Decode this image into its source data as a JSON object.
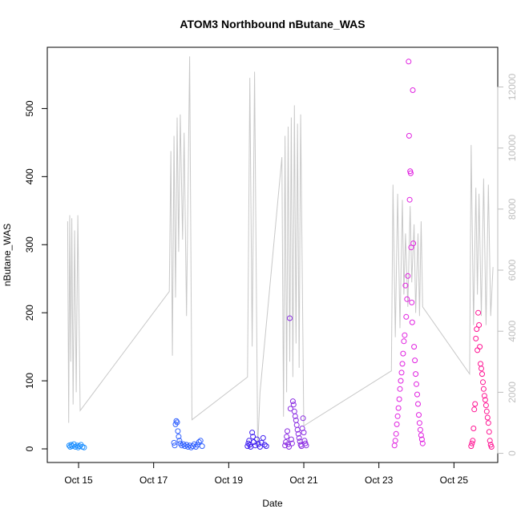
{
  "chart_data": {
    "type": "scatter",
    "title": "ATOM3 Northbound nButane_WAS",
    "xlabel": "Date",
    "ylabel": "nButane_WAS",
    "x_ticks": [
      "Oct 15",
      "Oct 17",
      "Oct 19",
      "Oct 21",
      "Oct 23",
      "Oct 25"
    ],
    "y_ticks": [
      "0",
      "100",
      "200",
      "300",
      "400",
      "500"
    ],
    "y2_ticks": [
      "0",
      "2000",
      "4000",
      "6000",
      "8000",
      "10000",
      "12000"
    ],
    "xlim": [
      "2017-10-14T04:00",
      "2017-10-26T04:00"
    ],
    "ylim": [
      -20,
      590
    ],
    "y2lim": [
      -300,
      13300
    ],
    "grid": false,
    "legend": "none",
    "colors": {
      "scatter_gradient": [
        "#1e90ff",
        "#4040ff",
        "#a020f0",
        "#ff00ff",
        "#ff1493"
      ],
      "altitude_line": "#c8c8c8",
      "axis": "#000000",
      "secondary_axis": "#bebebe"
    },
    "series": [
      {
        "color_group": "Oct 14 - Oct 15",
        "color": "#1e90ff",
        "points": [
          [
            "2017-10-14T18:00",
            5
          ],
          [
            "2017-10-14T18:40",
            3
          ],
          [
            "2017-10-14T19:20",
            6
          ],
          [
            "2017-10-14T20:00",
            4
          ],
          [
            "2017-10-14T21:00",
            7
          ],
          [
            "2017-10-14T22:00",
            3
          ],
          [
            "2017-10-14T23:00",
            5
          ],
          [
            "2017-10-14T23:45",
            2
          ],
          [
            "2017-10-15T00:30",
            4
          ],
          [
            "2017-10-15T01:30",
            6
          ],
          [
            "2017-10-15T02:30",
            3
          ],
          [
            "2017-10-15T03:30",
            2
          ]
        ]
      },
      {
        "color_group": "Oct 17 - Oct 18",
        "color": "#3060ff",
        "points": [
          [
            "2017-10-17T13:00",
            9
          ],
          [
            "2017-10-17T13:30",
            5
          ],
          [
            "2017-10-17T14:00",
            36
          ],
          [
            "2017-10-17T14:30",
            41
          ],
          [
            "2017-10-17T15:00",
            39
          ],
          [
            "2017-10-17T15:30",
            26
          ],
          [
            "2017-10-17T16:00",
            18
          ],
          [
            "2017-10-17T16:30",
            12
          ],
          [
            "2017-10-17T17:00",
            8
          ],
          [
            "2017-10-17T18:00",
            5
          ],
          [
            "2017-10-17T19:00",
            7
          ],
          [
            "2017-10-17T20:00",
            4
          ],
          [
            "2017-10-17T21:00",
            6
          ],
          [
            "2017-10-17T22:00",
            3
          ],
          [
            "2017-10-17T23:00",
            5
          ],
          [
            "2017-10-18T00:00",
            2
          ],
          [
            "2017-10-18T01:00",
            4
          ],
          [
            "2017-10-18T02:00",
            7
          ],
          [
            "2017-10-18T03:00",
            3
          ],
          [
            "2017-10-18T04:00",
            6
          ],
          [
            "2017-10-18T05:00",
            10
          ],
          [
            "2017-10-18T06:00",
            12
          ],
          [
            "2017-10-18T07:00",
            4
          ]
        ]
      },
      {
        "color_group": "Oct 19 - Oct 20",
        "color": "#4020f0",
        "points": [
          [
            "2017-10-19T12:00",
            4
          ],
          [
            "2017-10-19T12:30",
            8
          ],
          [
            "2017-10-19T13:00",
            12
          ],
          [
            "2017-10-19T13:30",
            6
          ],
          [
            "2017-10-19T14:00",
            3
          ],
          [
            "2017-10-19T15:00",
            24
          ],
          [
            "2017-10-19T15:30",
            18
          ],
          [
            "2017-10-19T16:00",
            10
          ],
          [
            "2017-10-19T17:00",
            5
          ],
          [
            "2017-10-19T18:00",
            14
          ],
          [
            "2017-10-19T19:00",
            7
          ],
          [
            "2017-10-19T20:00",
            3
          ],
          [
            "2017-10-19T21:00",
            9
          ],
          [
            "2017-10-19T22:00",
            16
          ],
          [
            "2017-10-19T23:00",
            6
          ],
          [
            "2017-10-20T00:00",
            4
          ]
        ]
      },
      {
        "color_group": "Oct 20 - Oct 21",
        "color": "#8a2be2",
        "points": [
          [
            "2017-10-20T12:00",
            5
          ],
          [
            "2017-10-20T12:30",
            10
          ],
          [
            "2017-10-20T13:00",
            18
          ],
          [
            "2017-10-20T13:30",
            26
          ],
          [
            "2017-10-20T14:00",
            7
          ],
          [
            "2017-10-20T14:30",
            3
          ],
          [
            "2017-10-20T15:00",
            192
          ],
          [
            "2017-10-20T15:30",
            59
          ],
          [
            "2017-10-20T16:00",
            14
          ],
          [
            "2017-10-20T16:30",
            8
          ],
          [
            "2017-10-20T17:00",
            70
          ],
          [
            "2017-10-20T17:30",
            65
          ],
          [
            "2017-10-20T18:00",
            55
          ],
          [
            "2017-10-20T18:30",
            48
          ],
          [
            "2017-10-20T19:00",
            42
          ],
          [
            "2017-10-20T19:30",
            35
          ],
          [
            "2017-10-20T20:00",
            28
          ],
          [
            "2017-10-20T20:30",
            22
          ],
          [
            "2017-10-20T21:00",
            16
          ],
          [
            "2017-10-20T21:30",
            11
          ],
          [
            "2017-10-20T22:00",
            6
          ],
          [
            "2017-10-20T22:30",
            4
          ],
          [
            "2017-10-20T23:00",
            30
          ],
          [
            "2017-10-20T23:30",
            45
          ],
          [
            "2017-10-21T00:00",
            24
          ],
          [
            "2017-10-21T00:30",
            12
          ],
          [
            "2017-10-21T01:00",
            8
          ],
          [
            "2017-10-21T01:30",
            5
          ]
        ]
      },
      {
        "color_group": "Oct 23 - Oct 24",
        "color": "#e020e0",
        "points": [
          [
            "2017-10-23T10:00",
            5
          ],
          [
            "2017-10-23T10:30",
            12
          ],
          [
            "2017-10-23T11:00",
            22
          ],
          [
            "2017-10-23T11:30",
            36
          ],
          [
            "2017-10-23T12:00",
            48
          ],
          [
            "2017-10-23T12:30",
            60
          ],
          [
            "2017-10-23T13:00",
            73
          ],
          [
            "2017-10-23T13:30",
            88
          ],
          [
            "2017-10-23T14:00",
            100
          ],
          [
            "2017-10-23T14:30",
            112
          ],
          [
            "2017-10-23T15:00",
            125
          ],
          [
            "2017-10-23T15:30",
            140
          ],
          [
            "2017-10-23T16:00",
            158
          ],
          [
            "2017-10-23T16:30",
            167
          ],
          [
            "2017-10-23T17:00",
            240
          ],
          [
            "2017-10-23T17:30",
            194
          ],
          [
            "2017-10-23T18:00",
            220
          ],
          [
            "2017-10-23T18:30",
            254
          ],
          [
            "2017-10-23T19:00",
            569
          ],
          [
            "2017-10-23T19:20",
            460
          ],
          [
            "2017-10-23T19:40",
            366
          ],
          [
            "2017-10-23T20:00",
            408
          ],
          [
            "2017-10-23T20:20",
            405
          ],
          [
            "2017-10-23T20:40",
            296
          ],
          [
            "2017-10-23T21:00",
            215
          ],
          [
            "2017-10-23T21:20",
            186
          ],
          [
            "2017-10-23T21:40",
            527
          ],
          [
            "2017-10-23T22:00",
            302
          ],
          [
            "2017-10-23T22:30",
            150
          ],
          [
            "2017-10-23T23:00",
            130
          ],
          [
            "2017-10-23T23:30",
            110
          ],
          [
            "2017-10-24T00:00",
            95
          ],
          [
            "2017-10-24T00:30",
            80
          ],
          [
            "2017-10-24T01:00",
            66
          ],
          [
            "2017-10-24T01:30",
            50
          ],
          [
            "2017-10-24T02:00",
            38
          ],
          [
            "2017-10-24T02:30",
            28
          ],
          [
            "2017-10-24T03:00",
            20
          ],
          [
            "2017-10-24T03:30",
            14
          ],
          [
            "2017-10-24T04:00",
            8
          ]
        ]
      },
      {
        "color_group": "Oct 25 - Oct 26",
        "color": "#ff1493",
        "points": [
          [
            "2017-10-25T11:00",
            4
          ],
          [
            "2017-10-25T11:30",
            8
          ],
          [
            "2017-10-25T12:00",
            12
          ],
          [
            "2017-10-25T12:30",
            30
          ],
          [
            "2017-10-25T13:00",
            58
          ],
          [
            "2017-10-25T13:30",
            66
          ],
          [
            "2017-10-25T14:00",
            162
          ],
          [
            "2017-10-25T14:30",
            176
          ],
          [
            "2017-10-25T15:00",
            145
          ],
          [
            "2017-10-25T15:30",
            200
          ],
          [
            "2017-10-25T16:00",
            182
          ],
          [
            "2017-10-25T16:30",
            150
          ],
          [
            "2017-10-25T17:00",
            125
          ],
          [
            "2017-10-25T17:30",
            118
          ],
          [
            "2017-10-25T18:00",
            110
          ],
          [
            "2017-10-25T18:30",
            98
          ],
          [
            "2017-10-25T19:00",
            88
          ],
          [
            "2017-10-25T19:30",
            78
          ],
          [
            "2017-10-25T20:00",
            72
          ],
          [
            "2017-10-25T20:30",
            64
          ],
          [
            "2017-10-25T21:00",
            55
          ],
          [
            "2017-10-25T21:30",
            46
          ],
          [
            "2017-10-25T22:00",
            38
          ],
          [
            "2017-10-25T22:30",
            25
          ],
          [
            "2017-10-25T23:00",
            12
          ],
          [
            "2017-10-25T23:30",
            6
          ],
          [
            "2017-10-26T00:00",
            3
          ]
        ]
      }
    ],
    "altitude_line": {
      "axis": "right",
      "color": "#c8c8c8",
      "points": [
        [
          "2017-10-14T17:00",
          7600
        ],
        [
          "2017-10-14T17:40",
          1000
        ],
        [
          "2017-10-14T18:20",
          7800
        ],
        [
          "2017-10-14T19:00",
          3000
        ],
        [
          "2017-10-14T19:40",
          7700
        ],
        [
          "2017-10-14T20:30",
          1600
        ],
        [
          "2017-10-14T21:30",
          7300
        ],
        [
          "2017-10-14T22:30",
          2000
        ],
        [
          "2017-10-14T23:30",
          7800
        ],
        [
          "2017-10-15T01:00",
          1400
        ],
        [
          "2017-10-17T10:00",
          5300
        ],
        [
          "2017-10-17T11:00",
          9900
        ],
        [
          "2017-10-17T12:00",
          3200
        ],
        [
          "2017-10-17T13:00",
          10400
        ],
        [
          "2017-10-17T14:00",
          5100
        ],
        [
          "2017-10-17T15:00",
          11000
        ],
        [
          "2017-10-17T16:00",
          6600
        ],
        [
          "2017-10-17T17:00",
          11100
        ],
        [
          "2017-10-17T18:30",
          7000
        ],
        [
          "2017-10-17T19:30",
          10500
        ],
        [
          "2017-10-17T21:00",
          4500
        ],
        [
          "2017-10-17T23:00",
          13000
        ],
        [
          "2017-10-18T00:30",
          1100
        ],
        [
          "2017-10-19T12:00",
          2500
        ],
        [
          "2017-10-19T13:30",
          12300
        ],
        [
          "2017-10-19T15:00",
          3500
        ],
        [
          "2017-10-19T16:30",
          12500
        ],
        [
          "2017-10-19T18:30",
          200
        ],
        [
          "2017-10-19T20:00",
          2000
        ],
        [
          "2017-10-20T10:00",
          9700
        ],
        [
          "2017-10-20T11:00",
          1200
        ],
        [
          "2017-10-20T12:00",
          10400
        ],
        [
          "2017-10-20T13:00",
          2000
        ],
        [
          "2017-10-20T14:00",
          10700
        ],
        [
          "2017-10-20T15:00",
          3000
        ],
        [
          "2017-10-20T16:00",
          11000
        ],
        [
          "2017-10-20T17:00",
          2500
        ],
        [
          "2017-10-20T18:00",
          11400
        ],
        [
          "2017-10-20T19:00",
          3600
        ],
        [
          "2017-10-20T20:00",
          10800
        ],
        [
          "2017-10-20T21:00",
          2800
        ],
        [
          "2017-10-20T22:00",
          11100
        ],
        [
          "2017-10-21T00:00",
          900
        ],
        [
          "2017-10-23T08:00",
          2700
        ],
        [
          "2017-10-23T09:00",
          8800
        ],
        [
          "2017-10-23T10:30",
          3800
        ],
        [
          "2017-10-23T12:00",
          8500
        ],
        [
          "2017-10-23T13:30",
          4100
        ],
        [
          "2017-10-23T15:00",
          8300
        ],
        [
          "2017-10-23T16:00",
          5200
        ],
        [
          "2017-10-23T17:00",
          7200
        ],
        [
          "2017-10-23T18:30",
          4800
        ],
        [
          "2017-10-23T20:00",
          8100
        ],
        [
          "2017-10-23T21:00",
          5600
        ],
        [
          "2017-10-23T22:30",
          7500
        ],
        [
          "2017-10-23T23:30",
          4600
        ],
        [
          "2017-10-24T01:00",
          7200
        ],
        [
          "2017-10-24T02:00",
          4500
        ],
        [
          "2017-10-24T03:00",
          7600
        ],
        [
          "2017-10-24T04:00",
          4800
        ],
        [
          "2017-10-25T10:00",
          2600
        ],
        [
          "2017-10-25T11:00",
          10100
        ],
        [
          "2017-10-25T12:30",
          4200
        ],
        [
          "2017-10-25T14:00",
          8700
        ],
        [
          "2017-10-25T15:00",
          5200
        ],
        [
          "2017-10-25T16:00",
          8500
        ],
        [
          "2017-10-25T17:30",
          4500
        ],
        [
          "2017-10-25T19:00",
          9000
        ],
        [
          "2017-10-25T20:30",
          4200
        ],
        [
          "2017-10-25T22:00",
          8800
        ],
        [
          "2017-10-25T23:30",
          4500
        ],
        [
          "2017-10-26T01:00",
          6100
        ]
      ]
    }
  }
}
